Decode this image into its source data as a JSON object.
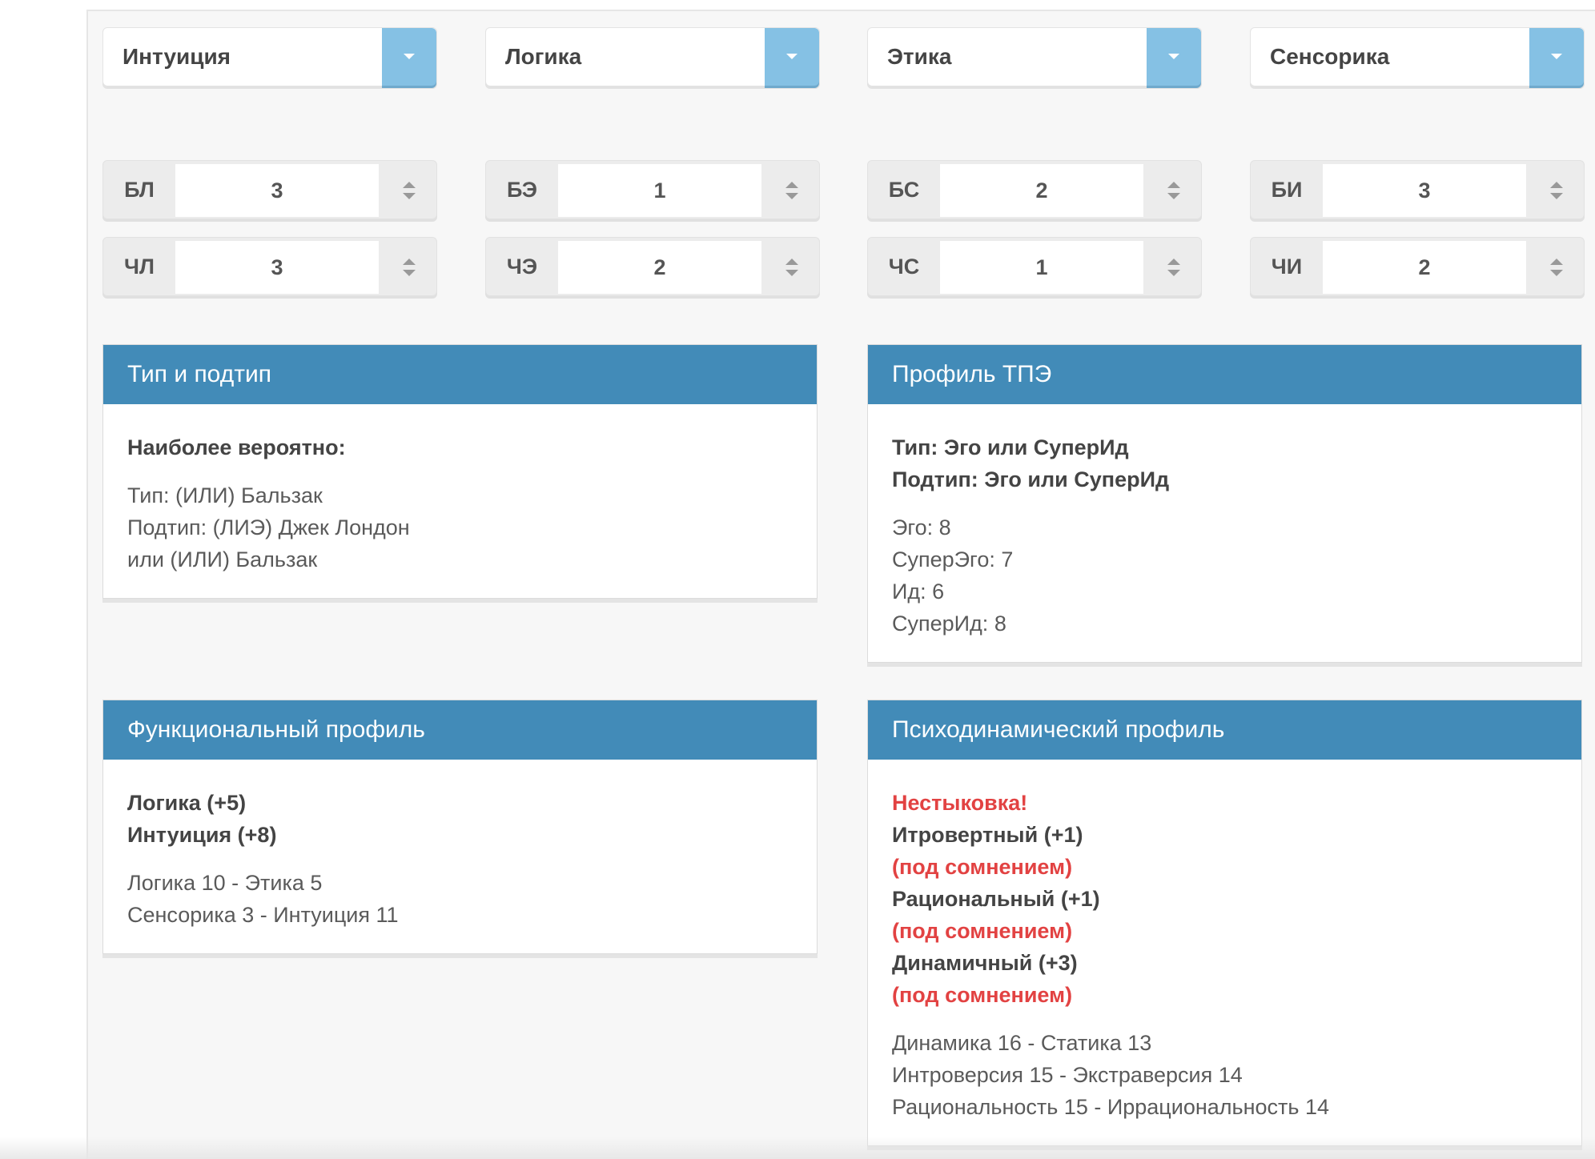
{
  "selects": [
    {
      "value": "Интуиция"
    },
    {
      "value": "Логика"
    },
    {
      "value": "Этика"
    },
    {
      "value": "Сенсорика"
    }
  ],
  "spinners": {
    "row1": [
      {
        "label": "БЛ",
        "value": "3"
      },
      {
        "label": "БЭ",
        "value": "1"
      },
      {
        "label": "БС",
        "value": "2"
      },
      {
        "label": "БИ",
        "value": "3"
      }
    ],
    "row2": [
      {
        "label": "ЧЛ",
        "value": "3"
      },
      {
        "label": "ЧЭ",
        "value": "2"
      },
      {
        "label": "ЧС",
        "value": "1"
      },
      {
        "label": "ЧИ",
        "value": "2"
      }
    ]
  },
  "type_panel": {
    "title": "Тип и подтип",
    "heading": "Наиболее вероятно:",
    "lines": [
      "Тип: (ИЛИ) Бальзак",
      "Подтип: (ЛИЭ) Джек Лондон",
      "или (ИЛИ) Бальзак"
    ]
  },
  "tpe_panel": {
    "title": "Профиль ТПЭ",
    "headings": [
      "Тип: Эго или СуперИд",
      "Подтип: Эго или СуперИд"
    ],
    "lines": [
      "Эго: 8",
      "СуперЭго: 7",
      "Ид: 6",
      "СуперИд: 8"
    ]
  },
  "func_panel": {
    "title": "Функциональный профиль",
    "headings": [
      "Логика (+5)",
      "Интуиция (+8)"
    ],
    "lines": [
      "Логика 10 - Этика 5",
      "Сенсорика 3 - Интуиция 11"
    ]
  },
  "psycho_panel": {
    "title": "Психодинамический профиль",
    "alert": "Нестыковка!",
    "items": [
      {
        "text": "Итровертный (+1)",
        "note": "(под сомнением)"
      },
      {
        "text": "Рациональный (+1)",
        "note": "(под сомнением)"
      },
      {
        "text": "Динамичный (+3)",
        "note": "(под сомнением)"
      }
    ],
    "lines": [
      "Динамика 16 - Статика 13",
      "Интроверсия 15 - Экстраверсия 14",
      "Рациональность 15 - Иррациональность 14"
    ]
  },
  "colors": {
    "panel_header": "#428bb8",
    "select_button": "#85c1e4",
    "alert_red": "#e24242"
  }
}
